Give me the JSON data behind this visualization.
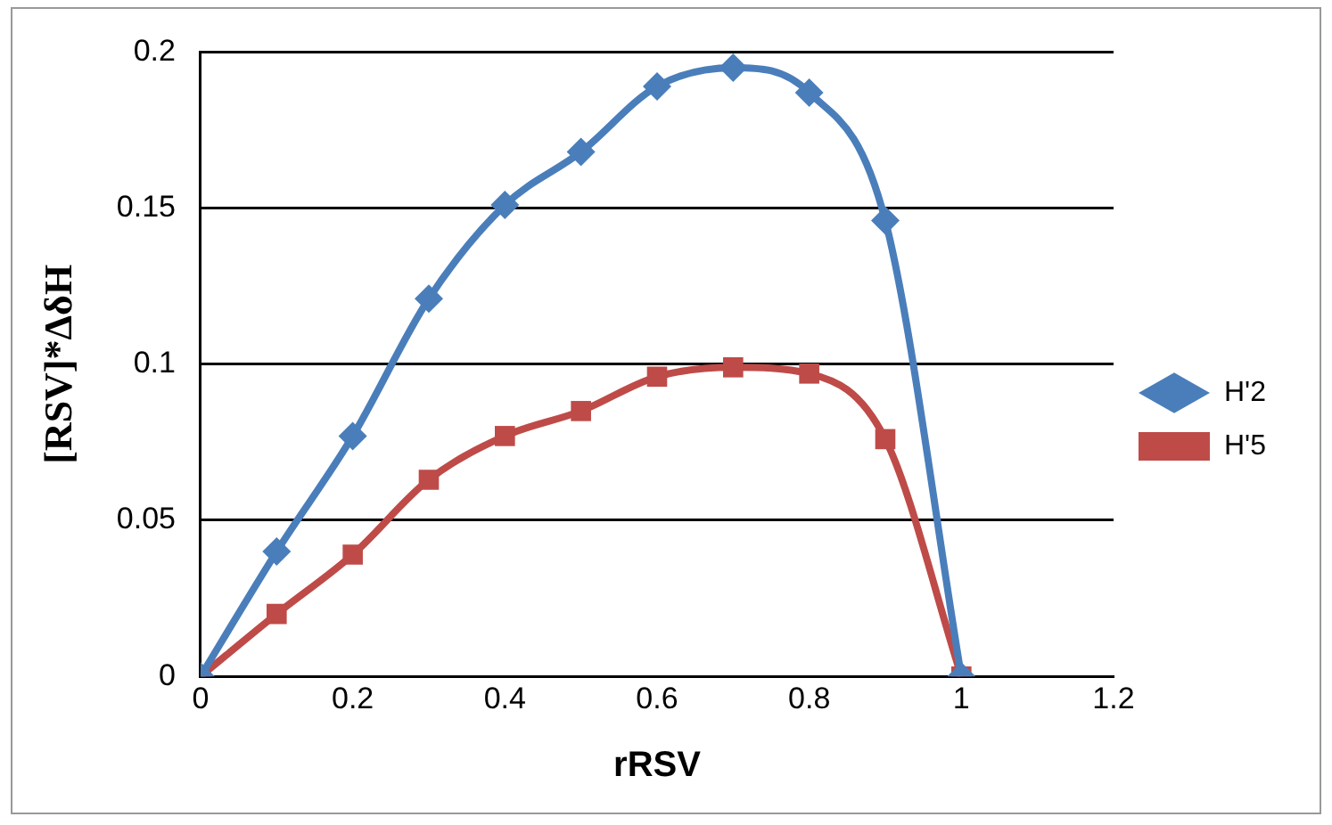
{
  "chart_data": {
    "type": "line",
    "xlabel": "rRSV",
    "ylabel": "[RSV]*ΔδH",
    "x": [
      0,
      0.1,
      0.2,
      0.3,
      0.4,
      0.5,
      0.6,
      0.7,
      0.8,
      0.9,
      1
    ],
    "series": [
      {
        "name": "H'2",
        "color": "#4a7ebb",
        "marker": "diamond",
        "values": [
          0,
          0.04,
          0.077,
          0.121,
          0.151,
          0.168,
          0.189,
          0.195,
          0.187,
          0.146,
          0
        ]
      },
      {
        "name": "H'5",
        "color": "#be4b48",
        "marker": "square",
        "values": [
          0,
          0.02,
          0.039,
          0.063,
          0.077,
          0.085,
          0.096,
          0.099,
          0.097,
          0.076,
          0
        ]
      }
    ],
    "xlim": [
      0,
      1.2
    ],
    "xticks": [
      0,
      0.2,
      0.4,
      0.6,
      0.8,
      1,
      1.2
    ],
    "ylim": [
      0,
      0.2
    ],
    "yticks": [
      0,
      0.05,
      0.1,
      0.15,
      0.2
    ],
    "grid": "y",
    "legend": "right"
  }
}
